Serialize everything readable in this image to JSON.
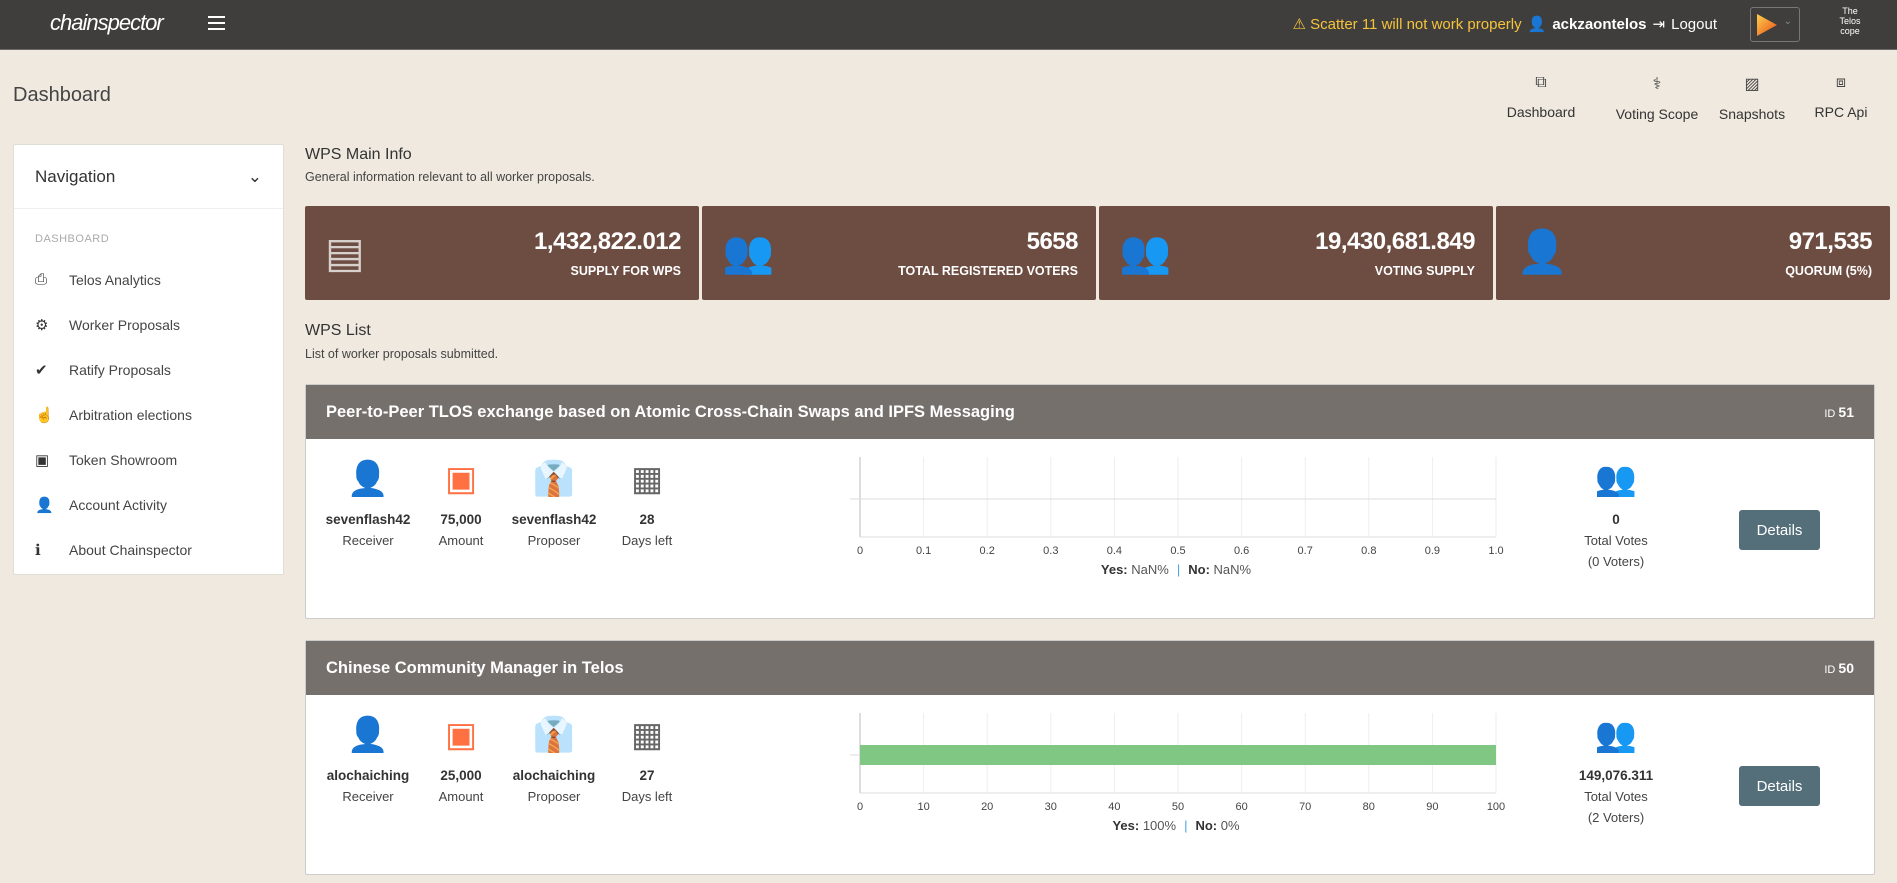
{
  "topbar": {
    "logo": "chainspector",
    "warning": "⚠ Scatter 11 will not work properly",
    "user": "ackzaontelos",
    "logout": "Logout",
    "telos_logo": "The Telos cope"
  },
  "page_title": "Dashboard",
  "quick_nav": [
    {
      "label": "Dashboard",
      "icon": "window-restore-icon"
    },
    {
      "label": "Voting Scope",
      "icon": "stethoscope-icon"
    },
    {
      "label": "Snapshots",
      "icon": "image-icon"
    },
    {
      "label": "RPC Api",
      "icon": "network-icon"
    }
  ],
  "sidebar": {
    "title": "Navigation",
    "section": "DASHBOARD",
    "items": [
      {
        "label": "Telos Analytics",
        "icon": "⎙"
      },
      {
        "label": "Worker Proposals",
        "icon": "⚙"
      },
      {
        "label": "Ratify Proposals",
        "icon": "✔"
      },
      {
        "label": "Arbitration elections",
        "icon": "☝"
      },
      {
        "label": "Token Showroom",
        "icon": "▣"
      },
      {
        "label": "Account Activity",
        "icon": "👤"
      },
      {
        "label": "About Chainspector",
        "icon": "ℹ"
      }
    ]
  },
  "main_info": {
    "title": "WPS Main Info",
    "subtitle": "General information relevant to all worker proposals."
  },
  "stats": [
    {
      "value": "1,432,822.012",
      "label": "SUPPLY FOR WPS",
      "icon": "money-icon"
    },
    {
      "value": "5658",
      "label": "TOTAL REGISTERED VOTERS",
      "icon": "users-icon"
    },
    {
      "value": "19,430,681.849",
      "label": "VOTING SUPPLY",
      "icon": "user-group-icon"
    },
    {
      "value": "971,535",
      "label": "QUORUM (5%)",
      "icon": "user-check-icon"
    }
  ],
  "wps_list": {
    "title": "WPS List",
    "subtitle": "List of worker proposals submitted."
  },
  "labels": {
    "receiver": "Receiver",
    "amount": "Amount",
    "proposer": "Proposer",
    "days": "Days left",
    "total_votes": "Total Votes",
    "details": "Details",
    "id": "ID",
    "yes": "Yes:",
    "no": "No:"
  },
  "proposals": [
    {
      "title": "Peer-to-Peer TLOS exchange based on Atomic Cross-Chain Swaps and IPFS Messaging",
      "id": "51",
      "receiver": "sevenflash42",
      "amount": "75,000",
      "proposer": "sevenflash42",
      "days": "28",
      "votes": "0",
      "voters": "(0 Voters)",
      "yes": "NaN%",
      "no": "NaN%"
    },
    {
      "title": "Chinese Community Manager in Telos",
      "id": "50",
      "receiver": "alochaiching",
      "amount": "25,000",
      "proposer": "alochaiching",
      "days": "27",
      "votes": "149,076.311",
      "voters": "(2 Voters)",
      "yes": "100%",
      "no": "0%"
    }
  ],
  "chart_data": [
    {
      "type": "bar",
      "orientation": "horizontal",
      "values": [],
      "xlim": [
        0,
        1.0
      ],
      "ticks": [
        "0",
        "0.1",
        "0.2",
        "0.3",
        "0.4",
        "0.5",
        "0.6",
        "0.7",
        "0.8",
        "0.9",
        "1.0"
      ],
      "grid": true
    },
    {
      "type": "bar",
      "orientation": "horizontal",
      "values": [
        100
      ],
      "xlim": [
        0,
        100
      ],
      "ticks": [
        "0",
        "10",
        "20",
        "30",
        "40",
        "50",
        "60",
        "70",
        "80",
        "90",
        "100"
      ],
      "grid": true,
      "color": "#81c784"
    }
  ]
}
